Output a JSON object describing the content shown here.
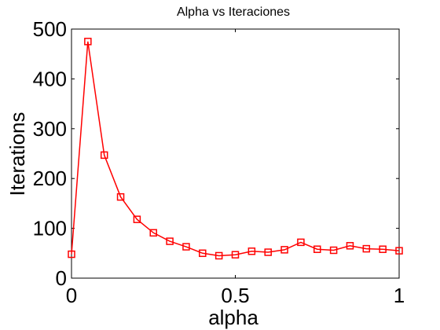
{
  "chart_data": {
    "type": "line",
    "title": "Alpha vs Iteraciones",
    "xlabel": "alpha",
    "ylabel": "Iterations",
    "xlim": [
      0,
      1
    ],
    "ylim": [
      0,
      500
    ],
    "xticks": [
      0,
      0.5,
      1
    ],
    "xtick_labels": [
      "0",
      "0.5",
      "1"
    ],
    "yticks": [
      0,
      100,
      200,
      300,
      400,
      500
    ],
    "ytick_labels": [
      "0",
      "100",
      "200",
      "300",
      "400",
      "500"
    ],
    "grid": false,
    "legend": "none",
    "series": [
      {
        "color": "#ff0000",
        "marker": "square",
        "x": [
          0,
          0.05,
          0.1,
          0.15,
          0.2,
          0.25,
          0.3,
          0.35,
          0.4,
          0.45,
          0.5,
          0.55,
          0.6,
          0.65,
          0.7,
          0.75,
          0.8,
          0.85,
          0.9,
          0.95,
          1.0
        ],
        "values": [
          48,
          475,
          247,
          163,
          118,
          91,
          74,
          63,
          50,
          45,
          47,
          54,
          52,
          57,
          72,
          58,
          56,
          65,
          59,
          58,
          55
        ]
      }
    ]
  }
}
